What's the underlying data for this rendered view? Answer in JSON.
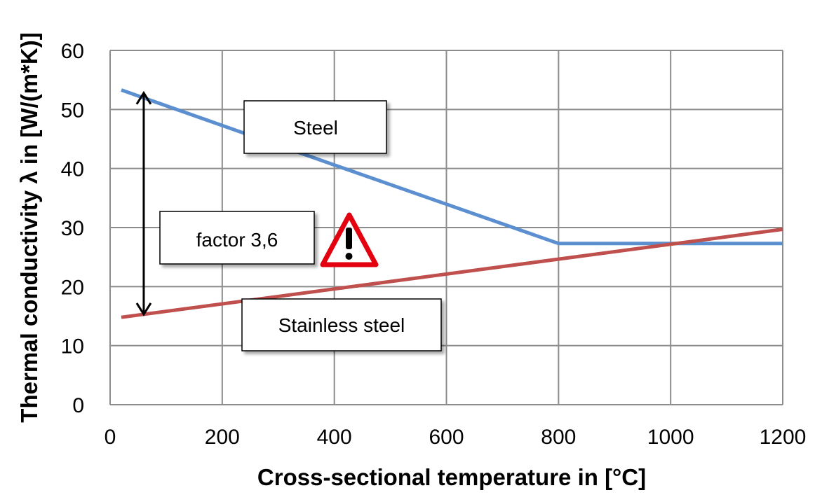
{
  "chart_data": {
    "type": "line",
    "xlabel": "Cross-sectional temperature in [°C]",
    "ylabel": "Thermal conductivity λ in [W/(m*K)]",
    "xlim": [
      0,
      1200
    ],
    "ylim": [
      0,
      60
    ],
    "xticks": [
      0,
      200,
      400,
      600,
      800,
      1000,
      1200
    ],
    "yticks": [
      0,
      10,
      20,
      30,
      40,
      50,
      60
    ],
    "grid": true,
    "series": [
      {
        "name": "Steel",
        "color": "#5b8fd0",
        "points": [
          [
            20,
            53.3
          ],
          [
            400,
            40.6
          ],
          [
            800,
            27.3
          ],
          [
            1200,
            27.3
          ]
        ]
      },
      {
        "name": "Stainless steel",
        "color": "#c0504d",
        "points": [
          [
            20,
            14.8
          ],
          [
            1200,
            29.7
          ]
        ]
      }
    ],
    "annotations": [
      {
        "text": "factor 3,6",
        "type": "double-arrow",
        "x": 60,
        "y_from": 15.3,
        "y_to": 52.8
      },
      {
        "type": "warning-icon",
        "icon": "exclamation-triangle-icon",
        "color": "#e3000f"
      }
    ]
  }
}
